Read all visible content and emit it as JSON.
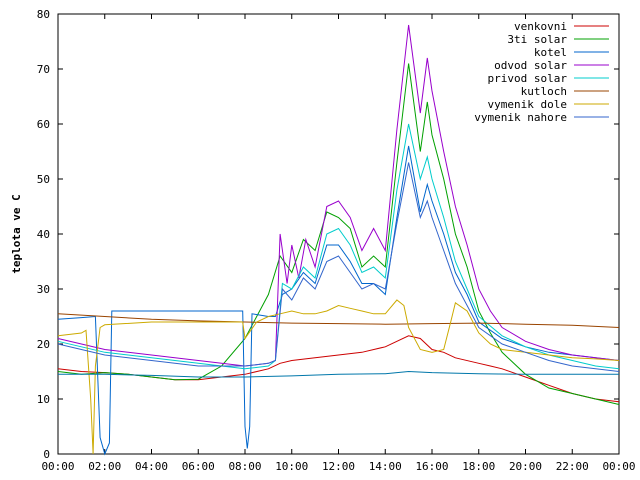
{
  "chart_data": {
    "type": "line",
    "xlabel": "",
    "ylabel": "teplota ve C",
    "xlim": [
      0,
      24
    ],
    "ylim": [
      0,
      80
    ],
    "x_ticks": [
      "00:00",
      "02:00",
      "04:00",
      "06:00",
      "08:00",
      "10:00",
      "12:00",
      "14:00",
      "16:00",
      "18:00",
      "20:00",
      "22:00",
      "00:00"
    ],
    "y_ticks": [
      "0",
      "10",
      "20",
      "30",
      "40",
      "50",
      "60",
      "70",
      "80"
    ],
    "legend_position": "top-right",
    "grid": false,
    "series": [
      {
        "name": "venkovni",
        "color": "#cc0000",
        "points": [
          [
            0,
            15.5
          ],
          [
            1,
            15
          ],
          [
            2,
            14.8
          ],
          [
            3,
            14.5
          ],
          [
            4,
            14
          ],
          [
            5,
            13.5
          ],
          [
            6,
            13.5
          ],
          [
            7,
            14
          ],
          [
            8,
            14.5
          ],
          [
            9,
            15.5
          ],
          [
            9.5,
            16.5
          ],
          [
            10,
            17
          ],
          [
            11,
            17.5
          ],
          [
            12,
            18
          ],
          [
            13,
            18.5
          ],
          [
            14,
            19.5
          ],
          [
            15,
            21.5
          ],
          [
            15.5,
            21
          ],
          [
            16,
            19
          ],
          [
            16.5,
            18.5
          ],
          [
            17,
            17.5
          ],
          [
            18,
            16.5
          ],
          [
            18.5,
            16
          ],
          [
            19,
            15.5
          ],
          [
            20,
            14
          ],
          [
            21,
            12.5
          ],
          [
            22,
            11
          ],
          [
            23,
            10
          ],
          [
            24,
            9.5
          ]
        ]
      },
      {
        "name": "3ti solar",
        "color": "#00a000",
        "points": [
          [
            0,
            15
          ],
          [
            1,
            14.5
          ],
          [
            2,
            14.8
          ],
          [
            3,
            14.5
          ],
          [
            4,
            14
          ],
          [
            5,
            13.5
          ],
          [
            6,
            13.6
          ],
          [
            7,
            16
          ],
          [
            8,
            21
          ],
          [
            8.5,
            25
          ],
          [
            9,
            29
          ],
          [
            9.5,
            36
          ],
          [
            10,
            33
          ],
          [
            10.5,
            39
          ],
          [
            11,
            37
          ],
          [
            11.5,
            44
          ],
          [
            12,
            43
          ],
          [
            12.5,
            41
          ],
          [
            13,
            34
          ],
          [
            13.5,
            36
          ],
          [
            14,
            34
          ],
          [
            14.5,
            53
          ],
          [
            15,
            71
          ],
          [
            15.5,
            55
          ],
          [
            15.8,
            64
          ],
          [
            16,
            58
          ],
          [
            16.5,
            50
          ],
          [
            17,
            40
          ],
          [
            17.5,
            34
          ],
          [
            18,
            26
          ],
          [
            18.5,
            22
          ],
          [
            19,
            18.5
          ],
          [
            20,
            14.5
          ],
          [
            21,
            12
          ],
          [
            22,
            11
          ],
          [
            23,
            10
          ],
          [
            24,
            9
          ]
        ]
      },
      {
        "name": "kotel",
        "color": "#0066cc",
        "points": [
          [
            0,
            24.5
          ],
          [
            1,
            24.8
          ],
          [
            1.6,
            25
          ],
          [
            1.8,
            3
          ],
          [
            2,
            0
          ],
          [
            2.2,
            2
          ],
          [
            2.3,
            26
          ],
          [
            4,
            26
          ],
          [
            6,
            26
          ],
          [
            7,
            26
          ],
          [
            7.9,
            26
          ],
          [
            8,
            5
          ],
          [
            8.1,
            1
          ],
          [
            8.2,
            5
          ],
          [
            8.3,
            25.5
          ],
          [
            9,
            25
          ],
          [
            9.3,
            25
          ],
          [
            9.6,
            29
          ],
          [
            10,
            30
          ],
          [
            10.5,
            33
          ],
          [
            11,
            31
          ],
          [
            11.5,
            38
          ],
          [
            12,
            38
          ],
          [
            12.5,
            35
          ],
          [
            13,
            31
          ],
          [
            13.5,
            31
          ],
          [
            14,
            29
          ],
          [
            14.5,
            43
          ],
          [
            15,
            56
          ],
          [
            15.5,
            44
          ],
          [
            15.8,
            49
          ],
          [
            16,
            46
          ],
          [
            16.5,
            40
          ],
          [
            17,
            33
          ],
          [
            17.5,
            29
          ],
          [
            18,
            24
          ],
          [
            19,
            21
          ],
          [
            20,
            19.5
          ],
          [
            21,
            18.5
          ],
          [
            22,
            18
          ],
          [
            23,
            17.5
          ],
          [
            24,
            17
          ]
        ]
      },
      {
        "name": "odvod solar",
        "color": "#9900cc",
        "points": [
          [
            0,
            21
          ],
          [
            1,
            20
          ],
          [
            2,
            19
          ],
          [
            3,
            18.5
          ],
          [
            4,
            18
          ],
          [
            5,
            17.5
          ],
          [
            6,
            17
          ],
          [
            7,
            16.5
          ],
          [
            8,
            16
          ],
          [
            9,
            16.5
          ],
          [
            9.3,
            17
          ],
          [
            9.5,
            40
          ],
          [
            9.8,
            31
          ],
          [
            10,
            38
          ],
          [
            10.3,
            32
          ],
          [
            10.6,
            39
          ],
          [
            11,
            34
          ],
          [
            11.5,
            45
          ],
          [
            12,
            46
          ],
          [
            12.5,
            43
          ],
          [
            13,
            37
          ],
          [
            13.5,
            41
          ],
          [
            14,
            37
          ],
          [
            14.5,
            59
          ],
          [
            15,
            78
          ],
          [
            15.5,
            62
          ],
          [
            15.8,
            72
          ],
          [
            16,
            66
          ],
          [
            16.5,
            55
          ],
          [
            17,
            45
          ],
          [
            17.5,
            38
          ],
          [
            18,
            30
          ],
          [
            18.5,
            26
          ],
          [
            19,
            23
          ],
          [
            20,
            20.5
          ],
          [
            21,
            19
          ],
          [
            22,
            18
          ],
          [
            23,
            17.5
          ],
          [
            24,
            17
          ]
        ]
      },
      {
        "name": "privod solar",
        "color": "#00cccc",
        "points": [
          [
            0,
            20.5
          ],
          [
            1,
            19.5
          ],
          [
            2,
            18.5
          ],
          [
            3,
            18
          ],
          [
            4,
            17.5
          ],
          [
            5,
            17
          ],
          [
            6,
            16.5
          ],
          [
            7,
            16
          ],
          [
            8,
            15.5
          ],
          [
            9,
            16
          ],
          [
            9.3,
            17
          ],
          [
            9.6,
            31
          ],
          [
            10,
            30
          ],
          [
            10.5,
            34
          ],
          [
            11,
            32
          ],
          [
            11.5,
            40
          ],
          [
            12,
            41
          ],
          [
            12.5,
            38
          ],
          [
            13,
            33
          ],
          [
            13.5,
            34
          ],
          [
            14,
            32
          ],
          [
            14.5,
            48
          ],
          [
            15,
            60
          ],
          [
            15.5,
            50
          ],
          [
            15.8,
            54
          ],
          [
            16,
            50
          ],
          [
            16.5,
            43
          ],
          [
            17,
            35
          ],
          [
            17.5,
            30
          ],
          [
            18,
            25
          ],
          [
            19,
            21.5
          ],
          [
            20,
            19.5
          ],
          [
            21,
            18
          ],
          [
            22,
            17
          ],
          [
            23,
            16
          ],
          [
            24,
            15.5
          ]
        ]
      },
      {
        "name": "kutloch",
        "color": "#994400",
        "points": [
          [
            0,
            25.5
          ],
          [
            2,
            25
          ],
          [
            4,
            24.5
          ],
          [
            6,
            24.2
          ],
          [
            8,
            24
          ],
          [
            10,
            23.8
          ],
          [
            12,
            23.7
          ],
          [
            14,
            23.6
          ],
          [
            16,
            23.7
          ],
          [
            18,
            23.8
          ],
          [
            20,
            23.6
          ],
          [
            22,
            23.4
          ],
          [
            24,
            23
          ]
        ]
      },
      {
        "name": "vymenik dole",
        "color": "#ccaa00",
        "points": [
          [
            0,
            21.5
          ],
          [
            1,
            22
          ],
          [
            1.2,
            22.5
          ],
          [
            1.4,
            10
          ],
          [
            1.5,
            0
          ],
          [
            1.6,
            16
          ],
          [
            1.8,
            23
          ],
          [
            2,
            23.5
          ],
          [
            4,
            24
          ],
          [
            6,
            24
          ],
          [
            7.9,
            24
          ],
          [
            8,
            21
          ],
          [
            8.5,
            24
          ],
          [
            9,
            25
          ],
          [
            9.5,
            25.5
          ],
          [
            10,
            26
          ],
          [
            10.5,
            25.5
          ],
          [
            11,
            25.5
          ],
          [
            11.5,
            26
          ],
          [
            12,
            27
          ],
          [
            12.5,
            26.5
          ],
          [
            13,
            26
          ],
          [
            13.5,
            25.5
          ],
          [
            14,
            25.5
          ],
          [
            14.5,
            28
          ],
          [
            14.8,
            27
          ],
          [
            15,
            23
          ],
          [
            15.5,
            19
          ],
          [
            16,
            18.5
          ],
          [
            16.5,
            19
          ],
          [
            16.8,
            24
          ],
          [
            17,
            27.5
          ],
          [
            17.5,
            26
          ],
          [
            18,
            22
          ],
          [
            18.5,
            20
          ],
          [
            19,
            19
          ],
          [
            20,
            18.5
          ],
          [
            21,
            18
          ],
          [
            22,
            17.5
          ],
          [
            23,
            17.3
          ],
          [
            24,
            17
          ]
        ]
      },
      {
        "name": "vymenik nahore",
        "color": "#3366cc",
        "points": [
          [
            0,
            20
          ],
          [
            1,
            19
          ],
          [
            2,
            18
          ],
          [
            3,
            17.5
          ],
          [
            4,
            17
          ],
          [
            5,
            16.5
          ],
          [
            6,
            16
          ],
          [
            7,
            16
          ],
          [
            8,
            16
          ],
          [
            9,
            16.5
          ],
          [
            9.3,
            17
          ],
          [
            9.6,
            30
          ],
          [
            10,
            28
          ],
          [
            10.5,
            32
          ],
          [
            11,
            30
          ],
          [
            11.5,
            35
          ],
          [
            12,
            36
          ],
          [
            12.5,
            33
          ],
          [
            13,
            30
          ],
          [
            13.5,
            31
          ],
          [
            14,
            30
          ],
          [
            14.5,
            42
          ],
          [
            15,
            53
          ],
          [
            15.5,
            43
          ],
          [
            15.8,
            46
          ],
          [
            16,
            43
          ],
          [
            16.5,
            37
          ],
          [
            17,
            31
          ],
          [
            17.5,
            27
          ],
          [
            18,
            23
          ],
          [
            19,
            20
          ],
          [
            20,
            18.5
          ],
          [
            21,
            17
          ],
          [
            22,
            16
          ],
          [
            23,
            15.5
          ],
          [
            24,
            15
          ]
        ]
      },
      {
        "name": "",
        "color": "#0077aa",
        "points": [
          [
            0,
            14.5
          ],
          [
            2,
            14.5
          ],
          [
            4,
            14.3
          ],
          [
            6,
            14
          ],
          [
            8,
            14
          ],
          [
            10,
            14.2
          ],
          [
            12,
            14.5
          ],
          [
            14,
            14.6
          ],
          [
            15,
            15
          ],
          [
            16,
            14.8
          ],
          [
            18,
            14.6
          ],
          [
            20,
            14.5
          ],
          [
            22,
            14.5
          ],
          [
            24,
            14.5
          ]
        ]
      }
    ]
  }
}
